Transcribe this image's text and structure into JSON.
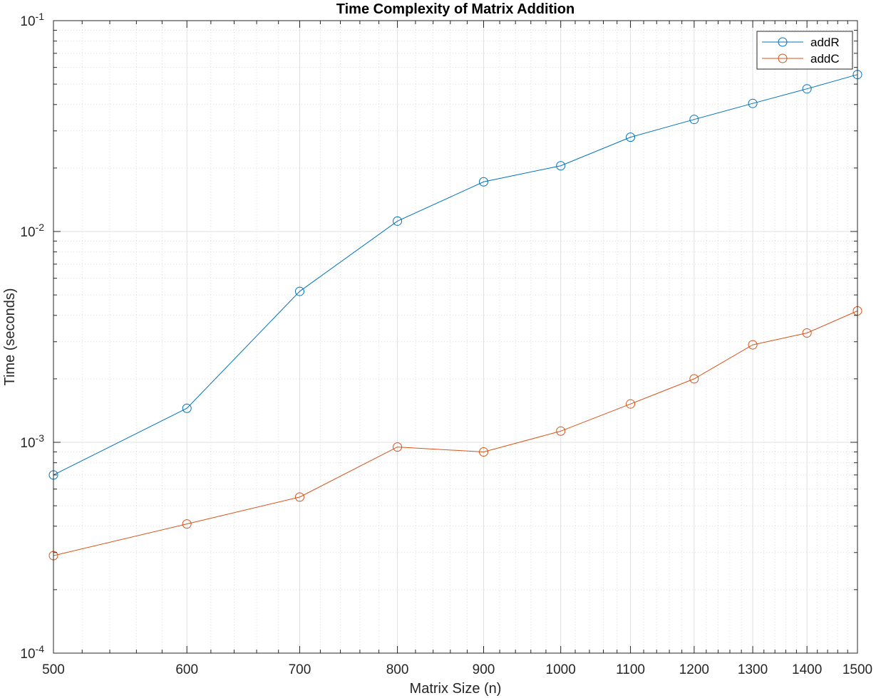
{
  "chart_data": {
    "type": "line",
    "title": "Time Complexity of Matrix Addition",
    "xlabel": "Matrix Size (n)",
    "ylabel": "Time (seconds)",
    "x_scale": "log",
    "y_scale": "log",
    "xlim": [
      500,
      1500
    ],
    "ylim": [
      0.0001,
      0.1
    ],
    "grid": true,
    "minor_grid": true,
    "legend_position": "top-right",
    "x_ticks": [
      500,
      600,
      700,
      800,
      900,
      1000,
      1100,
      1200,
      1300,
      1400,
      1500
    ],
    "x_tick_labels": [
      "500",
      "600",
      "700",
      "800",
      "900",
      "1000",
      "1100",
      "1200",
      "1300",
      "1400",
      "1500"
    ],
    "y_ticks": [
      0.0001,
      0.001,
      0.01,
      0.1
    ],
    "y_tick_labels": [
      {
        "base": "10",
        "exp": "-4"
      },
      {
        "base": "10",
        "exp": "-3"
      },
      {
        "base": "10",
        "exp": "-2"
      },
      {
        "base": "10",
        "exp": "-1"
      }
    ],
    "x": [
      500,
      600,
      700,
      800,
      900,
      1000,
      1100,
      1200,
      1300,
      1400,
      1500
    ],
    "series": [
      {
        "name": "addR",
        "color": "#0072BD",
        "marker": "circle",
        "values": [
          0.0007,
          0.00145,
          0.0052,
          0.0112,
          0.0172,
          0.0205,
          0.028,
          0.034,
          0.0405,
          0.0475,
          0.0555
        ]
      },
      {
        "name": "addC",
        "color": "#D95319",
        "marker": "circle",
        "values": [
          0.00029,
          0.00041,
          0.00055,
          0.00095,
          0.0009,
          0.00113,
          0.00152,
          0.002,
          0.0029,
          0.0033,
          0.0042
        ]
      }
    ]
  }
}
